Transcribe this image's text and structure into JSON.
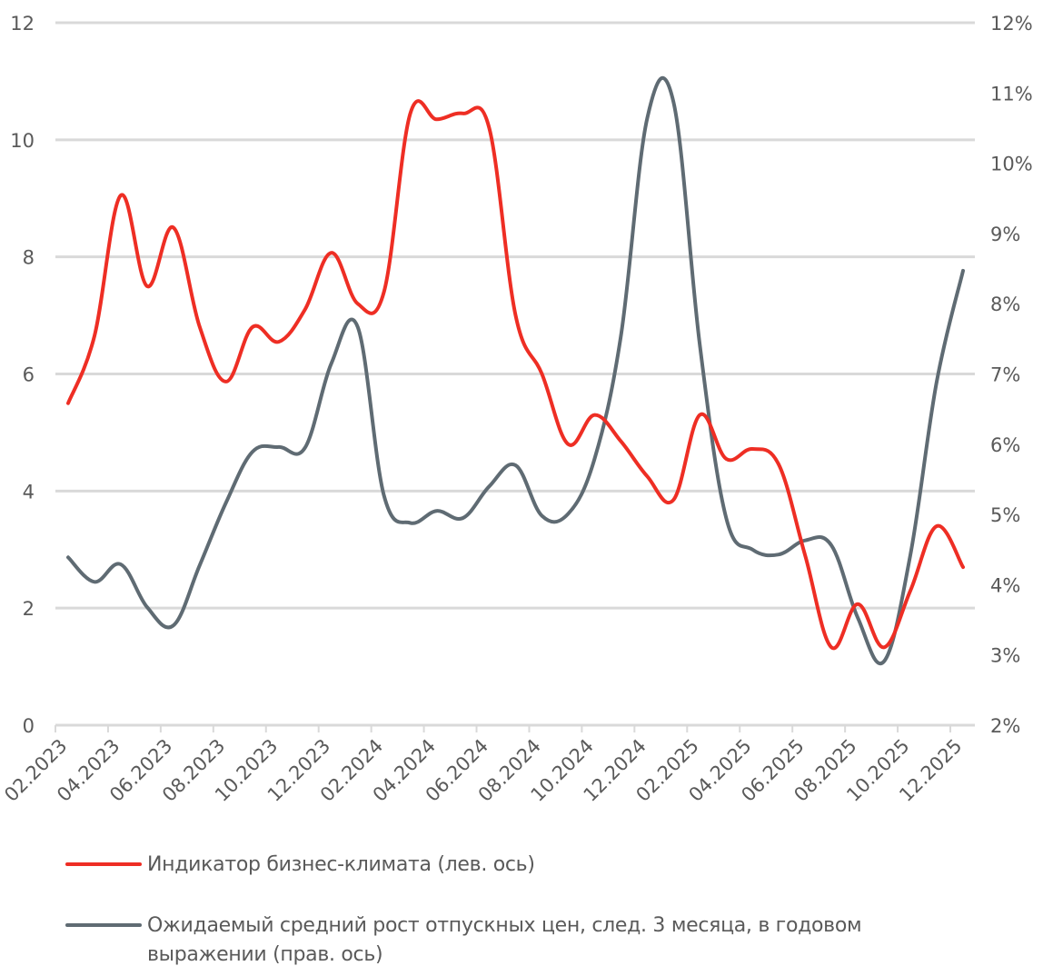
{
  "chart_data": {
    "type": "line",
    "title": "",
    "x": [
      "02.2023",
      "03.2023",
      "04.2023",
      "05.2023",
      "06.2023",
      "07.2023",
      "08.2023",
      "09.2023",
      "10.2023",
      "11.2023",
      "12.2023",
      "01.2024",
      "02.2024",
      "03.2024",
      "04.2024",
      "05.2024",
      "06.2024",
      "07.2024",
      "08.2024",
      "09.2024",
      "10.2024",
      "11.2024",
      "12.2024",
      "01.2025",
      "02.2025",
      "03.2025",
      "04.2025",
      "05.2025",
      "06.2025",
      "07.2025",
      "08.2025",
      "09.2025",
      "10.2025",
      "11.2025",
      "12.2025"
    ],
    "x_tick_labels": [
      "02.2023",
      "04.2023",
      "06.2023",
      "08.2023",
      "10.2023",
      "12.2023",
      "02.2024",
      "04.2024",
      "06.2024",
      "08.2024",
      "10.2024",
      "12.2024",
      "02.2025",
      "04.2025",
      "06.2025",
      "08.2025",
      "10.2025",
      "12.2025"
    ],
    "y_left": {
      "ylim": [
        0,
        12
      ],
      "tick_labels": [
        "0",
        "2",
        "4",
        "6",
        "8",
        "10",
        "12"
      ]
    },
    "y_right": {
      "ylim": [
        2,
        12
      ],
      "tick_labels": [
        "2%",
        "3%",
        "4%",
        "5%",
        "6%",
        "7%",
        "8%",
        "9%",
        "10%",
        "11%",
        "12%"
      ]
    },
    "grid": true,
    "legend_position": "bottom",
    "series": [
      {
        "name": "Индикатор бизнес-климата (лев. ось)",
        "axis": "left",
        "color": "#EE2E24",
        "values": [
          5.5,
          6.65,
          9.05,
          7.5,
          8.5,
          6.8,
          5.87,
          6.8,
          6.55,
          7.1,
          8.07,
          7.2,
          7.4,
          10.45,
          10.35,
          10.45,
          10.2,
          7.0,
          6.0,
          4.8,
          5.3,
          4.85,
          4.25,
          3.85,
          5.3,
          4.55,
          4.72,
          4.45,
          2.9,
          1.33,
          2.07,
          1.33,
          2.3,
          3.4,
          2.7
        ]
      },
      {
        "name": "Ожидаемый средний рост отпускных цен, след. 3 месяца, в годовом выражении (прав. ось)",
        "axis": "right",
        "color": "#5F6B73",
        "values": [
          4.39,
          4.04,
          4.29,
          3.68,
          3.42,
          4.28,
          5.17,
          5.89,
          5.96,
          5.95,
          7.15,
          7.67,
          5.27,
          4.88,
          5.05,
          4.95,
          5.4,
          5.7,
          4.98,
          5.01,
          5.79,
          7.54,
          10.64,
          10.87,
          7.41,
          4.95,
          4.5,
          4.43,
          4.63,
          4.56,
          3.53,
          2.91,
          4.43,
          6.89,
          8.47
        ]
      }
    ]
  },
  "legend": {
    "items": [
      {
        "label": "Индикатор бизнес-климата (лев. ось)",
        "color": "#EE2E24"
      },
      {
        "label": "Ожидаемый средний рост отпускных цен, след. 3 месяца, в годовом выражении (прав. ось)",
        "color": "#5F6B73"
      }
    ]
  },
  "style": {
    "grid_color": "#D9D9D9",
    "text_color": "#5a5a5a"
  }
}
